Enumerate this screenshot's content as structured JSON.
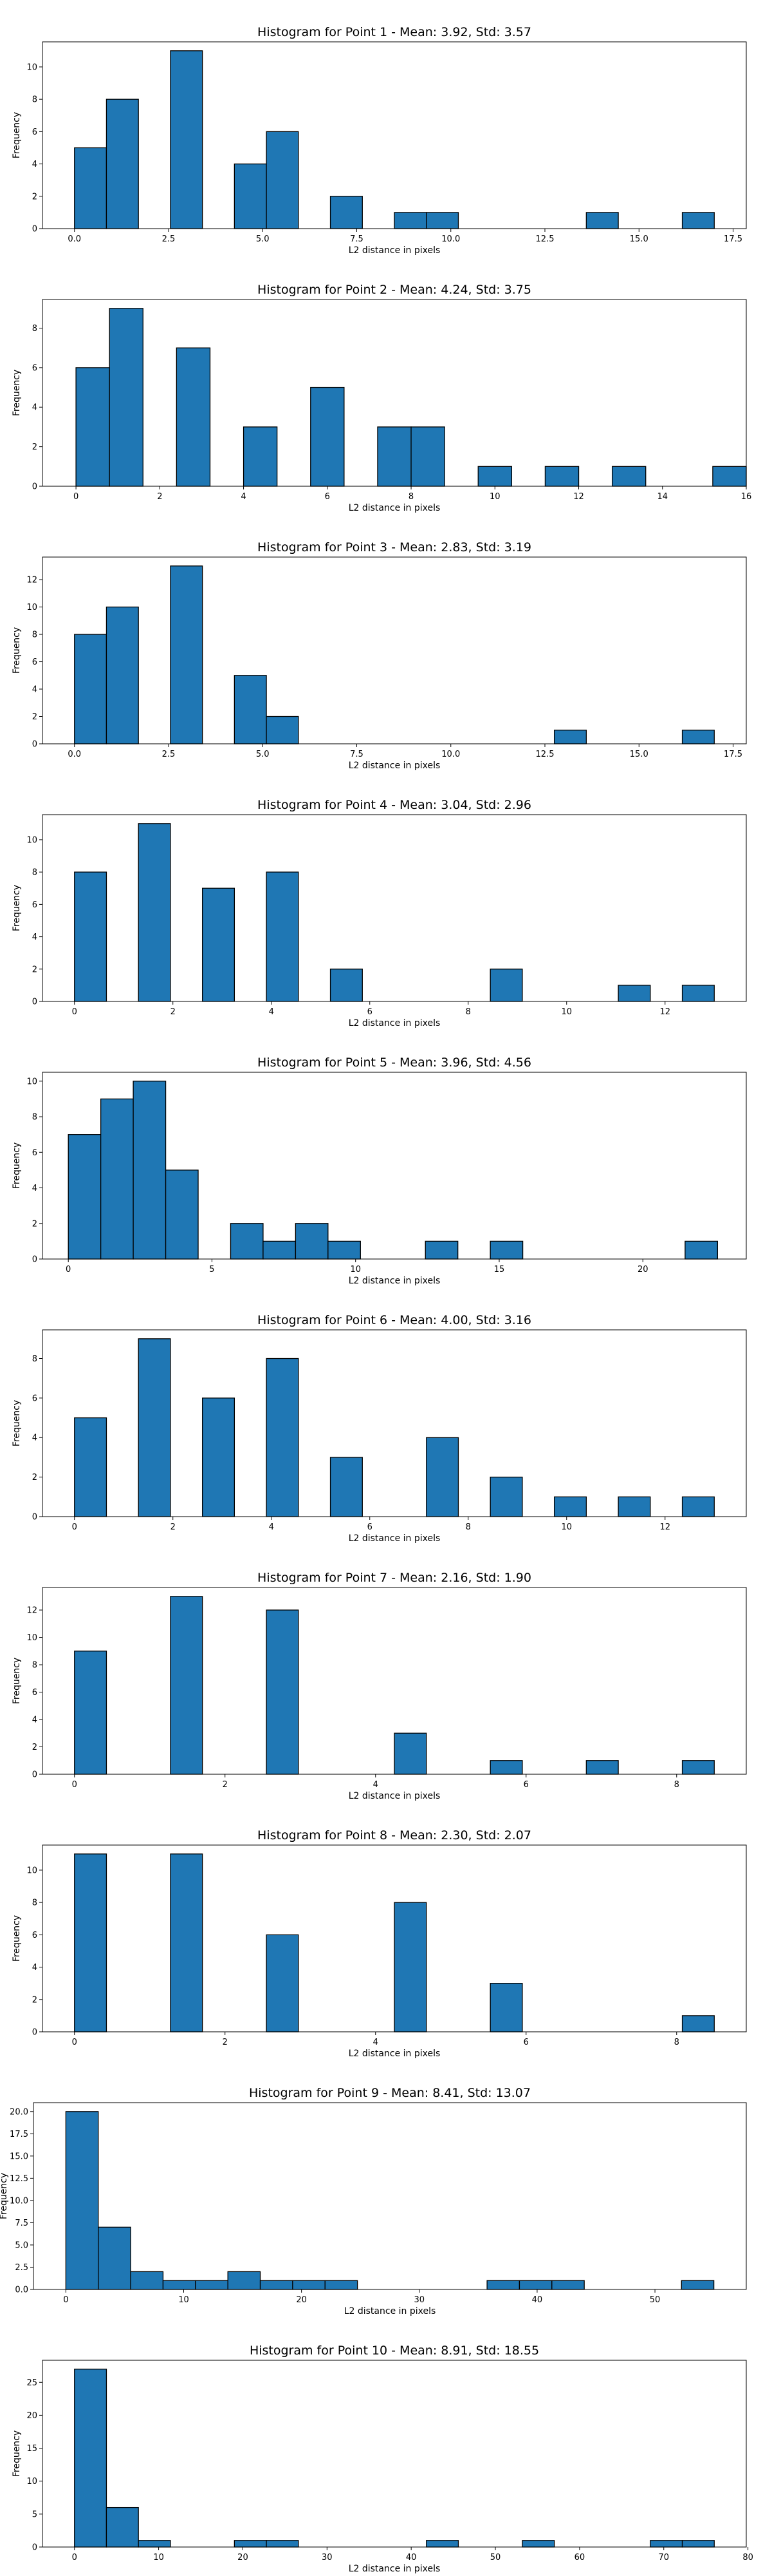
{
  "chart_data": [
    {
      "type": "bar",
      "title": "Histogram for Point 1 - Mean: 3.92, Std: 3.57",
      "xlabel": "L2 distance in pixels",
      "ylabel": "Frequency",
      "xlim": [
        -0.85,
        17.85
      ],
      "ylim": [
        0,
        11.55
      ],
      "xticks": [
        0.0,
        2.5,
        5.0,
        7.5,
        10.0,
        12.5,
        15.0,
        17.5
      ],
      "xtick_labels": [
        "0.0",
        "2.5",
        "5.0",
        "7.5",
        "10.0",
        "12.5",
        "15.0",
        "17.5"
      ],
      "yticks": [
        0,
        2,
        4,
        6,
        8,
        10
      ],
      "ytick_labels": [
        "0",
        "2",
        "4",
        "6",
        "8",
        "10"
      ],
      "bins": [
        [
          0,
          0.85,
          5
        ],
        [
          0.85,
          1.7,
          8
        ],
        [
          2.55,
          3.4,
          11
        ],
        [
          4.25,
          5.1,
          4
        ],
        [
          5.1,
          5.95,
          6
        ],
        [
          6.8,
          7.65,
          2
        ],
        [
          8.5,
          9.35,
          1
        ],
        [
          9.35,
          10.2,
          1
        ],
        [
          13.6,
          14.45,
          1
        ],
        [
          16.15,
          17.0,
          1
        ]
      ]
    },
    {
      "type": "bar",
      "title": "Histogram for Point 2 - Mean: 4.24, Std: 3.75",
      "xlabel": "L2 distance in pixels",
      "ylabel": "Frequency",
      "xlim": [
        -0.8,
        16.0
      ],
      "ylim": [
        0,
        9.45
      ],
      "xticks": [
        0,
        2,
        4,
        6,
        8,
        10,
        12,
        14,
        16
      ],
      "xtick_labels": [
        "0",
        "2",
        "4",
        "6",
        "8",
        "10",
        "12",
        "14",
        "16"
      ],
      "yticks": [
        0,
        2,
        4,
        6,
        8
      ],
      "ytick_labels": [
        "0",
        "2",
        "4",
        "6",
        "8"
      ],
      "bins": [
        [
          0,
          0.8,
          6
        ],
        [
          0.8,
          1.6,
          9
        ],
        [
          2.4,
          3.2,
          7
        ],
        [
          4.0,
          4.8,
          3
        ],
        [
          5.6,
          6.4,
          5
        ],
        [
          7.2,
          8.0,
          3
        ],
        [
          8.0,
          8.8,
          3
        ],
        [
          9.6,
          10.4,
          1
        ],
        [
          11.2,
          12.0,
          1
        ],
        [
          12.8,
          13.6,
          1
        ],
        [
          15.2,
          16.0,
          1
        ]
      ]
    },
    {
      "type": "bar",
      "title": "Histogram for Point 3 - Mean: 2.83, Std: 3.19",
      "xlabel": "L2 distance in pixels",
      "ylabel": "Frequency",
      "xlim": [
        -0.85,
        17.85
      ],
      "ylim": [
        0,
        13.65
      ],
      "xticks": [
        0.0,
        2.5,
        5.0,
        7.5,
        10.0,
        12.5,
        15.0,
        17.5
      ],
      "xtick_labels": [
        "0.0",
        "2.5",
        "5.0",
        "7.5",
        "10.0",
        "12.5",
        "15.0",
        "17.5"
      ],
      "yticks": [
        0,
        2,
        4,
        6,
        8,
        10,
        12
      ],
      "ytick_labels": [
        "0",
        "2",
        "4",
        "6",
        "8",
        "10",
        "12"
      ],
      "bins": [
        [
          0,
          0.85,
          8
        ],
        [
          0.85,
          1.7,
          10
        ],
        [
          2.55,
          3.4,
          13
        ],
        [
          4.25,
          5.1,
          5
        ],
        [
          5.1,
          5.95,
          2
        ],
        [
          12.75,
          13.6,
          1
        ],
        [
          16.15,
          17.0,
          1
        ]
      ]
    },
    {
      "type": "bar",
      "title": "Histogram for Point 4 - Mean: 3.04, Std: 2.96",
      "xlabel": "L2 distance in pixels",
      "ylabel": "Frequency",
      "xlim": [
        -0.65,
        13.65
      ],
      "ylim": [
        0,
        11.55
      ],
      "xticks": [
        0,
        2,
        4,
        6,
        8,
        10,
        12
      ],
      "xtick_labels": [
        "0",
        "2",
        "4",
        "6",
        "8",
        "10",
        "12"
      ],
      "yticks": [
        0,
        2,
        4,
        6,
        8,
        10
      ],
      "ytick_labels": [
        "0",
        "2",
        "4",
        "6",
        "8",
        "10"
      ],
      "bins": [
        [
          0,
          0.65,
          8
        ],
        [
          1.3,
          1.95,
          11
        ],
        [
          2.6,
          3.25,
          7
        ],
        [
          3.9,
          4.55,
          8
        ],
        [
          5.2,
          5.85,
          2
        ],
        [
          8.45,
          9.1,
          2
        ],
        [
          11.05,
          11.7,
          1
        ],
        [
          12.35,
          13.0,
          1
        ]
      ]
    },
    {
      "type": "bar",
      "title": "Histogram for Point 5 - Mean: 3.96, Std: 4.56",
      "xlabel": "L2 distance in pixels",
      "ylabel": "Frequency",
      "xlim": [
        -0.9,
        23.6
      ],
      "ylim": [
        0,
        10.5
      ],
      "xticks": [
        0,
        5,
        10,
        15,
        20
      ],
      "xtick_labels": [
        "0",
        "5",
        "10",
        "15",
        "20"
      ],
      "yticks": [
        0,
        2,
        4,
        6,
        8,
        10
      ],
      "ytick_labels": [
        "0",
        "2",
        "4",
        "6",
        "8",
        "10"
      ],
      "bins": [
        [
          0,
          1.13,
          7
        ],
        [
          1.13,
          2.26,
          9
        ],
        [
          2.26,
          3.39,
          10
        ],
        [
          3.39,
          4.52,
          5
        ],
        [
          5.65,
          6.78,
          2
        ],
        [
          6.78,
          7.91,
          1
        ],
        [
          7.91,
          9.04,
          2
        ],
        [
          9.04,
          10.17,
          1
        ],
        [
          12.43,
          13.56,
          1
        ],
        [
          14.69,
          15.82,
          1
        ],
        [
          21.47,
          22.6,
          1
        ]
      ]
    },
    {
      "type": "bar",
      "title": "Histogram for Point 6 - Mean: 4.00, Std: 3.16",
      "xlabel": "L2 distance in pixels",
      "ylabel": "Frequency",
      "xlim": [
        -0.65,
        13.65
      ],
      "ylim": [
        0,
        9.45
      ],
      "xticks": [
        0,
        2,
        4,
        6,
        8,
        10,
        12
      ],
      "xtick_labels": [
        "0",
        "2",
        "4",
        "6",
        "8",
        "10",
        "12"
      ],
      "yticks": [
        0,
        2,
        4,
        6,
        8
      ],
      "ytick_labels": [
        "0",
        "2",
        "4",
        "6",
        "8"
      ],
      "bins": [
        [
          0,
          0.65,
          5
        ],
        [
          1.3,
          1.95,
          9
        ],
        [
          2.6,
          3.25,
          6
        ],
        [
          3.9,
          4.55,
          8
        ],
        [
          5.2,
          5.85,
          3
        ],
        [
          7.15,
          7.8,
          4
        ],
        [
          8.45,
          9.1,
          2
        ],
        [
          9.75,
          10.4,
          1
        ],
        [
          11.05,
          11.7,
          1
        ],
        [
          12.35,
          13.0,
          1
        ]
      ]
    },
    {
      "type": "bar",
      "title": "Histogram for Point 7 - Mean: 2.16, Std: 1.90",
      "xlabel": "L2 distance in pixels",
      "ylabel": "Frequency",
      "xlim": [
        -0.425,
        8.925
      ],
      "ylim": [
        0,
        13.65
      ],
      "xticks": [
        0,
        2,
        4,
        6,
        8
      ],
      "xtick_labels": [
        "0",
        "2",
        "4",
        "6",
        "8"
      ],
      "yticks": [
        0,
        2,
        4,
        6,
        8,
        10,
        12
      ],
      "ytick_labels": [
        "0",
        "2",
        "4",
        "6",
        "8",
        "10",
        "12"
      ],
      "bins": [
        [
          0,
          0.425,
          9
        ],
        [
          1.275,
          1.7,
          13
        ],
        [
          2.55,
          2.975,
          12
        ],
        [
          4.25,
          4.675,
          3
        ],
        [
          5.525,
          5.95,
          1
        ],
        [
          6.8,
          7.225,
          1
        ],
        [
          8.075,
          8.5,
          1
        ]
      ]
    },
    {
      "type": "bar",
      "title": "Histogram for Point 8 - Mean: 2.30, Std: 2.07",
      "xlabel": "L2 distance in pixels",
      "ylabel": "Frequency",
      "xlim": [
        -0.425,
        8.925
      ],
      "ylim": [
        0,
        11.55
      ],
      "xticks": [
        0,
        2,
        4,
        6,
        8
      ],
      "xtick_labels": [
        "0",
        "2",
        "4",
        "6",
        "8"
      ],
      "yticks": [
        0,
        2,
        4,
        6,
        8,
        10
      ],
      "ytick_labels": [
        "0",
        "2",
        "4",
        "6",
        "8",
        "10"
      ],
      "bins": [
        [
          0,
          0.425,
          11
        ],
        [
          1.275,
          1.7,
          11
        ],
        [
          2.55,
          2.975,
          6
        ],
        [
          4.25,
          4.675,
          8
        ],
        [
          5.525,
          5.95,
          3
        ],
        [
          8.075,
          8.5,
          1
        ]
      ]
    },
    {
      "type": "bar",
      "title": "Histogram for Point 9 - Mean: 8.41, Std: 13.07",
      "xlabel": "L2 distance in pixels",
      "ylabel": "Frequency",
      "xlim": [
        -2.75,
        57.75
      ],
      "ylim": [
        0,
        21.0
      ],
      "xticks": [
        0,
        10,
        20,
        30,
        40,
        50
      ],
      "xtick_labels": [
        "0",
        "10",
        "20",
        "30",
        "40",
        "50"
      ],
      "yticks": [
        0,
        2.5,
        5,
        7.5,
        10,
        12.5,
        15,
        17.5,
        20
      ],
      "ytick_labels": [
        "0.0",
        "2.5",
        "5.0",
        "7.5",
        "10.0",
        "12.5",
        "15.0",
        "17.5",
        "20.0"
      ],
      "bins": [
        [
          0,
          2.75,
          20
        ],
        [
          2.75,
          5.5,
          7
        ],
        [
          5.5,
          8.25,
          2
        ],
        [
          8.25,
          11.0,
          1
        ],
        [
          11.0,
          13.75,
          1
        ],
        [
          13.75,
          16.5,
          2
        ],
        [
          16.5,
          19.25,
          1
        ],
        [
          19.25,
          22.0,
          1
        ],
        [
          22.0,
          24.75,
          1
        ],
        [
          35.75,
          38.5,
          1
        ],
        [
          38.5,
          41.25,
          1
        ],
        [
          41.25,
          44.0,
          1
        ],
        [
          52.25,
          55.0,
          1
        ]
      ]
    },
    {
      "type": "bar",
      "title": "Histogram for Point 10 - Mean: 8.91, Std: 18.55",
      "xlabel": "L2 distance in pixels",
      "ylabel": "Frequency",
      "xlim": [
        -3.8,
        79.8
      ],
      "ylim": [
        0,
        28.35
      ],
      "xticks": [
        0,
        10,
        20,
        30,
        40,
        50,
        60,
        70,
        80
      ],
      "xtick_labels": [
        "0",
        "10",
        "20",
        "30",
        "40",
        "50",
        "60",
        "70",
        "80"
      ],
      "yticks": [
        0,
        5,
        10,
        15,
        20,
        25
      ],
      "ytick_labels": [
        "0",
        "5",
        "10",
        "15",
        "20",
        "25"
      ],
      "bins": [
        [
          0,
          3.8,
          27
        ],
        [
          3.8,
          7.6,
          6
        ],
        [
          7.6,
          11.4,
          1
        ],
        [
          19.0,
          22.8,
          1
        ],
        [
          22.8,
          26.6,
          1
        ],
        [
          41.8,
          45.6,
          1
        ],
        [
          53.2,
          57.0,
          1
        ],
        [
          68.4,
          72.2,
          1
        ],
        [
          72.2,
          76.0,
          1
        ]
      ]
    }
  ]
}
